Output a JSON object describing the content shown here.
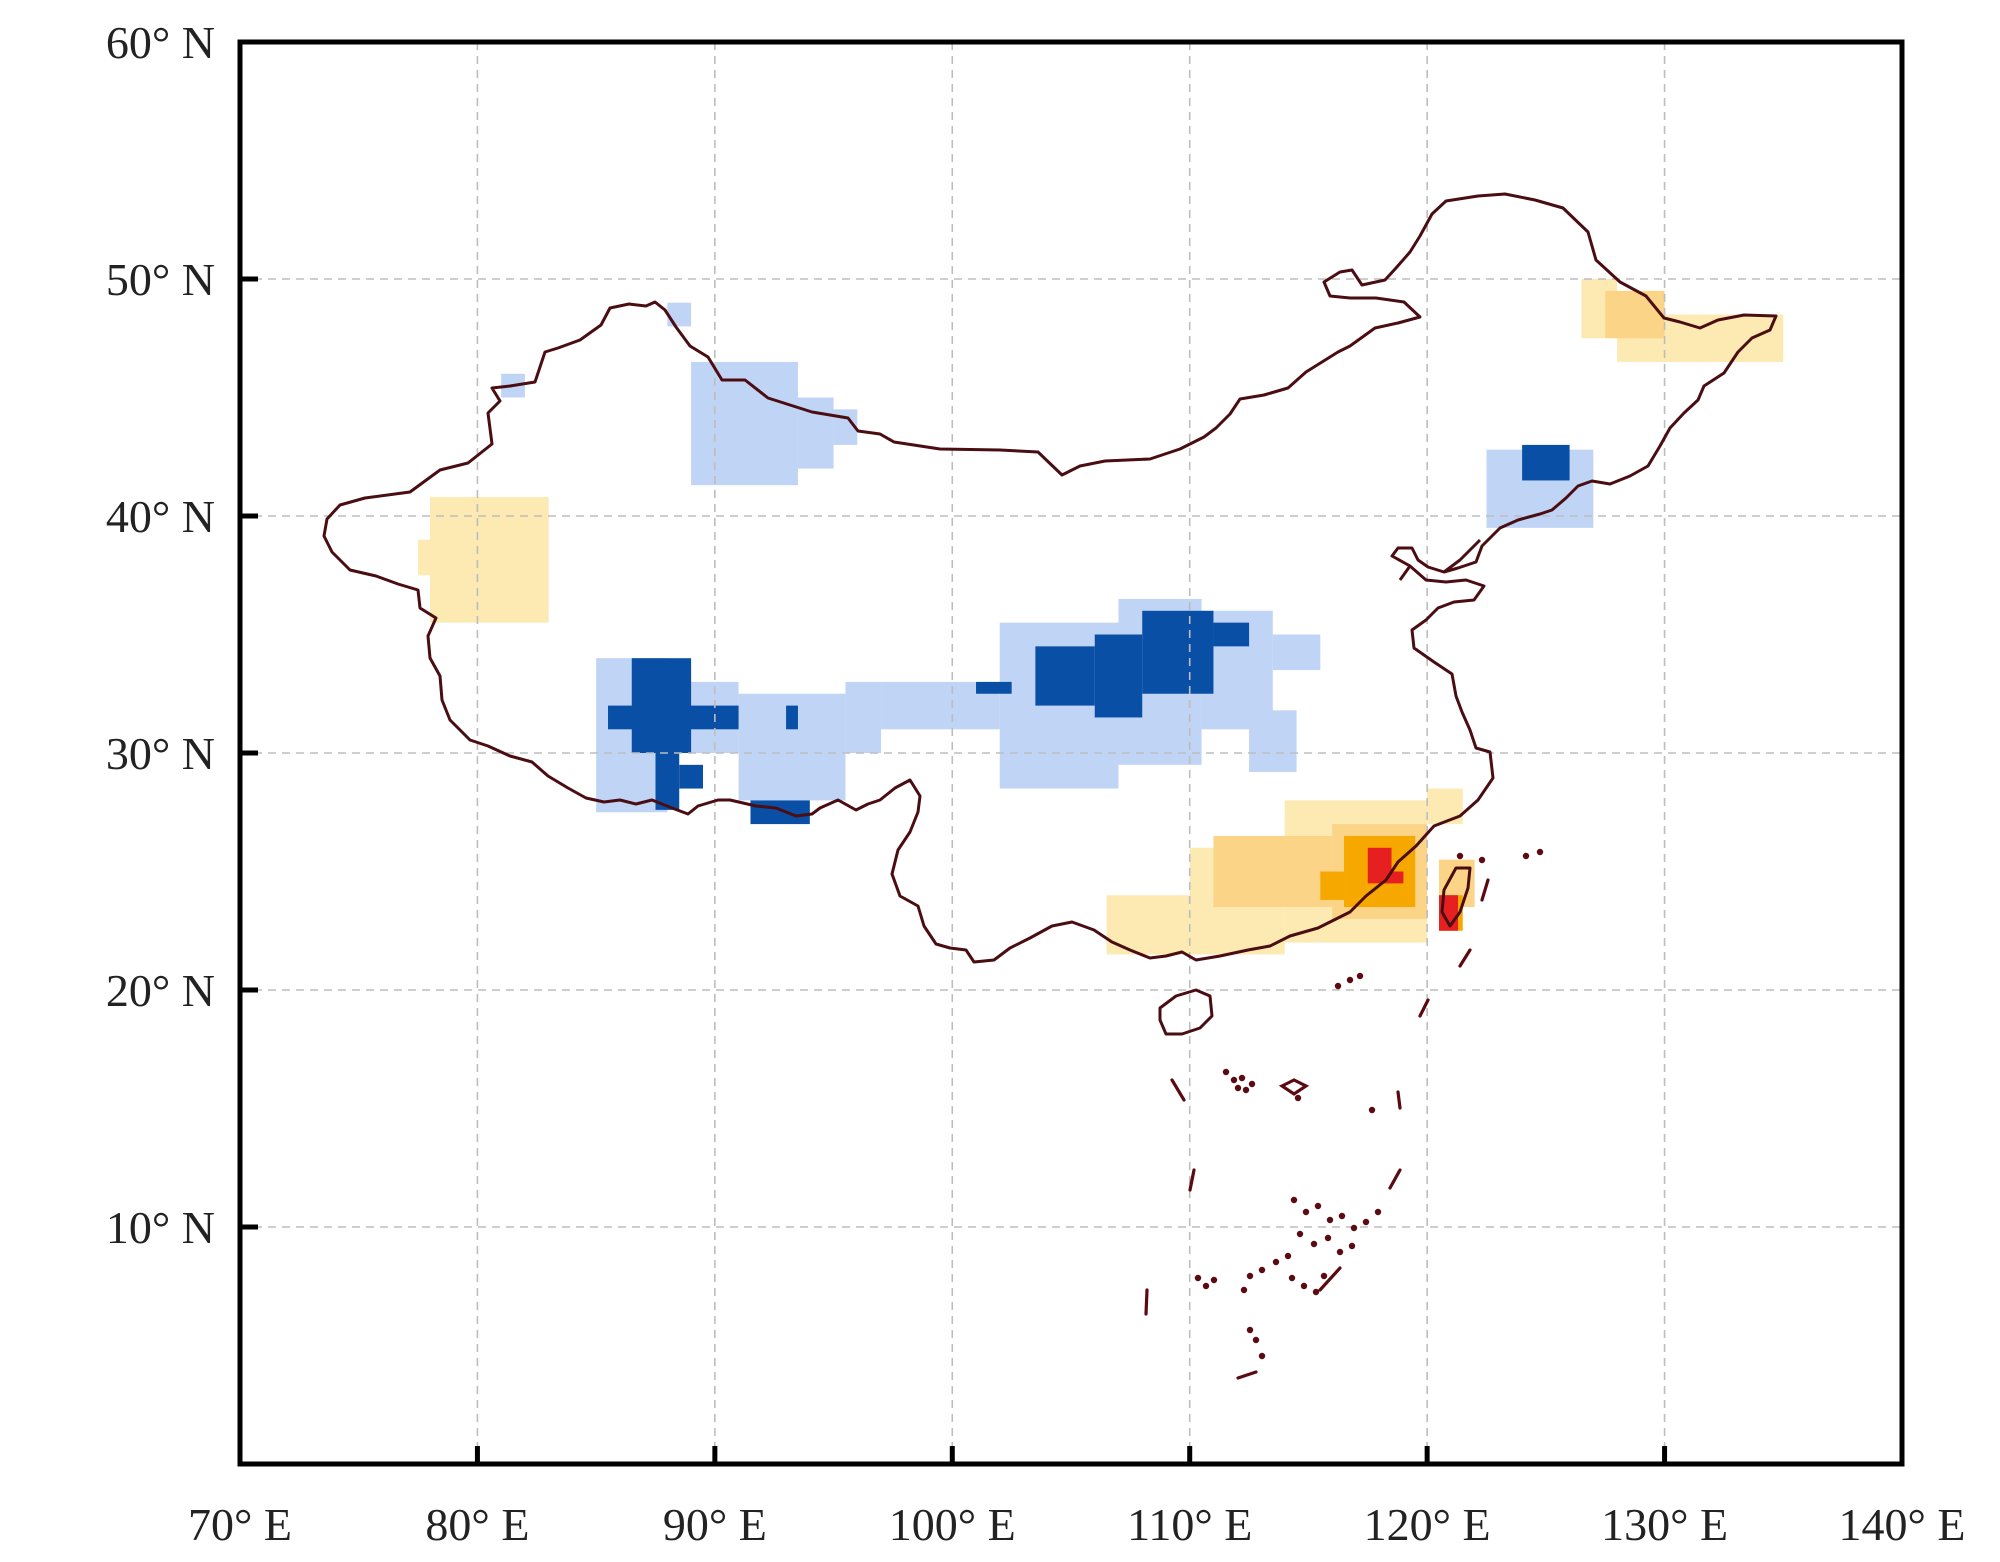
{
  "map": {
    "lon_range": [
      70,
      140
    ],
    "lat_range": [
      0,
      60
    ],
    "gridlines": true,
    "x_ticks": [
      {
        "value": 70,
        "label": "70° E"
      },
      {
        "value": 80,
        "label": "80° E"
      },
      {
        "value": 90,
        "label": "90° E"
      },
      {
        "value": 100,
        "label": "100° E"
      },
      {
        "value": 110,
        "label": "110° E"
      },
      {
        "value": 120,
        "label": "120° E"
      },
      {
        "value": 130,
        "label": "130° E"
      },
      {
        "value": 140,
        "label": "140° E"
      }
    ],
    "y_ticks": [
      {
        "value": 10,
        "label": "10° N"
      },
      {
        "value": 20,
        "label": "20° N"
      },
      {
        "value": 30,
        "label": "30° N"
      },
      {
        "value": 40,
        "label": "40° N"
      },
      {
        "value": 50,
        "label": "50° N"
      },
      {
        "value": 60,
        "label": "60° N"
      }
    ],
    "colors": {
      "border": "#4a0d12",
      "light_blue": "#c0d4f6",
      "dark_blue": "#0a4fa6",
      "light_yellow": "#fde9b2",
      "light_orange": "#fcd488",
      "orange": "#f6a800",
      "red": "#e62020"
    },
    "regions": [
      {
        "name": "light-blue",
        "color": "#c0d4f6",
        "rects": [
          [
            89,
            93.5,
            41.3,
            46.5
          ],
          [
            93.5,
            95,
            42,
            45
          ],
          [
            95,
            96,
            43,
            44.5
          ],
          [
            88,
            89,
            48,
            49
          ],
          [
            81,
            82,
            45,
            46
          ],
          [
            122.5,
            127,
            39.5,
            42.8
          ],
          [
            85,
            88,
            27.5,
            34
          ],
          [
            88,
            91,
            30,
            33
          ],
          [
            91,
            95.5,
            28,
            32.5
          ],
          [
            95.5,
            97,
            30,
            33
          ],
          [
            97,
            102,
            31,
            33
          ],
          [
            102,
            107,
            28.5,
            35.5
          ],
          [
            107,
            110.5,
            29.5,
            36.5
          ],
          [
            110.5,
            113.5,
            31,
            36
          ],
          [
            113.5,
            115.5,
            33.5,
            35
          ],
          [
            112.5,
            114.5,
            29.2,
            31.8
          ]
        ]
      },
      {
        "name": "dark-blue",
        "color": "#0a4fa6",
        "rects": [
          [
            86.5,
            89,
            30,
            34
          ],
          [
            85.5,
            91,
            31,
            32
          ],
          [
            87.5,
            88.5,
            27.6,
            30
          ],
          [
            88.5,
            89.5,
            28.5,
            29.5
          ],
          [
            91.5,
            94,
            27,
            28
          ],
          [
            93,
            93.5,
            31,
            32
          ],
          [
            101,
            102.5,
            32.5,
            33
          ],
          [
            103.5,
            106,
            32,
            34.5
          ],
          [
            106,
            108,
            31.5,
            35
          ],
          [
            108,
            111,
            32.5,
            36
          ],
          [
            111,
            112.5,
            34.5,
            35.5
          ],
          [
            124,
            126,
            41.5,
            43
          ]
        ]
      },
      {
        "name": "light-yellow",
        "color": "#fde9b2",
        "rects": [
          [
            78,
            83,
            35.5,
            40.8
          ],
          [
            77.5,
            78.5,
            37.5,
            39
          ],
          [
            106.5,
            110,
            21.5,
            24
          ],
          [
            110,
            114,
            21.5,
            26
          ],
          [
            114,
            120,
            22,
            28
          ],
          [
            120,
            121.5,
            27,
            28.5
          ],
          [
            126.5,
            128,
            47.5,
            50
          ],
          [
            128,
            135,
            46.5,
            48.5
          ]
        ]
      },
      {
        "name": "light-orange",
        "color": "#fcd488",
        "rects": [
          [
            111,
            116,
            23.5,
            26.5
          ],
          [
            116,
            120,
            23,
            27
          ],
          [
            127.5,
            130,
            47.5,
            49.5
          ],
          [
            120.5,
            122,
            23.5,
            25.5
          ]
        ]
      },
      {
        "name": "orange",
        "color": "#f6a800",
        "rects": [
          [
            116.5,
            119.5,
            23.5,
            26.5
          ],
          [
            115.5,
            116.5,
            23.8,
            25
          ],
          [
            120.5,
            121.5,
            22.5,
            24
          ]
        ]
      },
      {
        "name": "red",
        "color": "#e62020",
        "rects": [
          [
            117.5,
            118.5,
            24.5,
            26
          ],
          [
            118,
            119,
            24.5,
            25
          ],
          [
            120.5,
            121.3,
            22.5,
            24
          ]
        ]
      }
    ]
  }
}
